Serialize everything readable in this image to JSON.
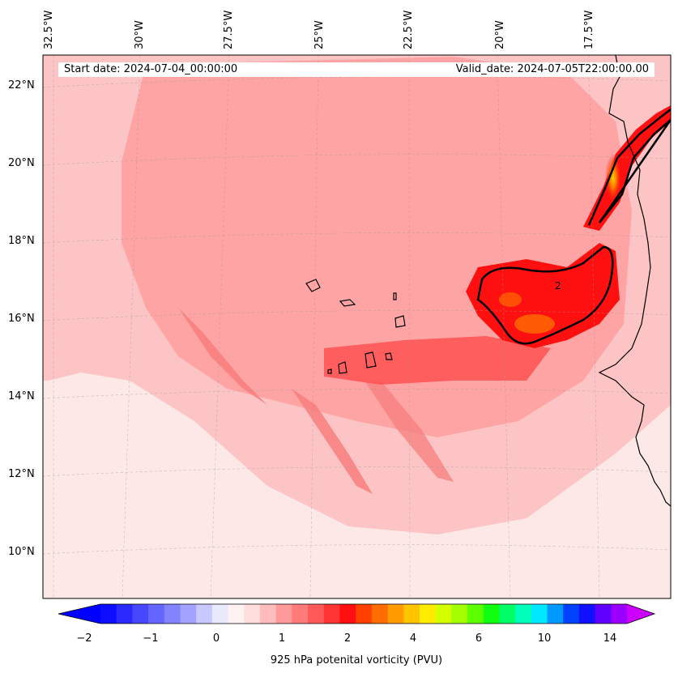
{
  "map": {
    "lon_labels": [
      "32.5°W",
      "30°W",
      "27.5°W",
      "25°W",
      "22.5°W",
      "20°W",
      "17.5°W"
    ],
    "lat_labels": [
      "22°N",
      "20°N",
      "18°N",
      "16°N",
      "14°N",
      "12°N",
      "10°N"
    ],
    "start_date": "Start date: 2024-07-04_00:00:00",
    "valid_date": "Valid_date: 2024-07-05T22:00:00.00",
    "contour_label": "2",
    "background_color": "#fde8e8",
    "accent_colors": [
      "#fcc0c0",
      "#f77b7b",
      "#ff1010",
      "#ff7700",
      "#f0c800"
    ]
  },
  "colorbar": {
    "tick_labels": [
      "−2",
      "−1",
      "0",
      "1",
      "2",
      "4",
      "6",
      "10",
      "14"
    ],
    "title": "925 hPa potenital vorticity (PVU)",
    "colors": [
      "#0d0dff",
      "#2a2aff",
      "#4747ff",
      "#6565ff",
      "#8383ff",
      "#a3a3ff",
      "#c9c9ff",
      "#eaeaff",
      "#fff2f2",
      "#ffdede",
      "#ffbcbc",
      "#ff9a9a",
      "#ff7a7a",
      "#ff5a5a",
      "#ff3434",
      "#ff1010",
      "#ff4000",
      "#ff6c00",
      "#ff9a00",
      "#ffc400",
      "#ffec00",
      "#d4ff00",
      "#a4ff00",
      "#5cff00",
      "#10ff10",
      "#00ff66",
      "#00ffbb",
      "#00e8ff",
      "#0099ff",
      "#0040ff",
      "#1010ff",
      "#6000ff",
      "#9900ff"
    ],
    "extend_min_color": "#0000ff",
    "extend_max_color": "#cc00ff"
  }
}
